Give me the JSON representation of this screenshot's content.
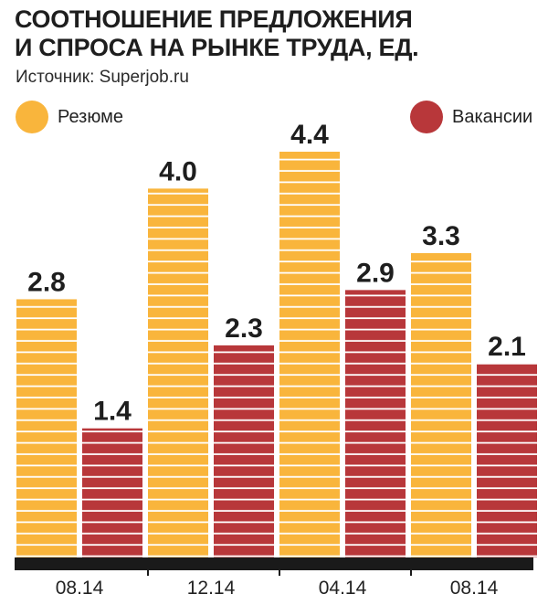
{
  "header": {
    "title_line1": "СООТНОШЕНИЕ ПРЕДЛОЖЕНИЯ",
    "title_line2": "И СПРОСА НА РЫНКЕ ТРУДА, ЕД.",
    "source": "Источник: Superjob.ru"
  },
  "colors": {
    "resume": "#F9B53C",
    "vacancy": "#B8373A",
    "stripe": "#FFFFFF",
    "baseline": "#1A1A1A"
  },
  "chart_data": {
    "type": "bar",
    "title": "СООТНОШЕНИЕ ПРЕДЛОЖЕНИЯ И СПРОСА НА РЫНКЕ ТРУДА, ЕД.",
    "categories": [
      "08.14",
      "12.14",
      "04.14",
      "08.14"
    ],
    "series": [
      {
        "name": "Резюме",
        "values": [
          2.8,
          4.0,
          4.4,
          3.3
        ],
        "labels": [
          "2.8",
          "4.0",
          "4.4",
          "3.3"
        ]
      },
      {
        "name": "Вакансии",
        "values": [
          1.4,
          2.3,
          2.9,
          2.1
        ],
        "labels": [
          "1.4",
          "2.3",
          "2.9",
          "2.1"
        ]
      }
    ],
    "legend_position": "top",
    "xlabel": "",
    "ylabel": "",
    "ylim": [
      0,
      4.4
    ],
    "grid": false
  }
}
